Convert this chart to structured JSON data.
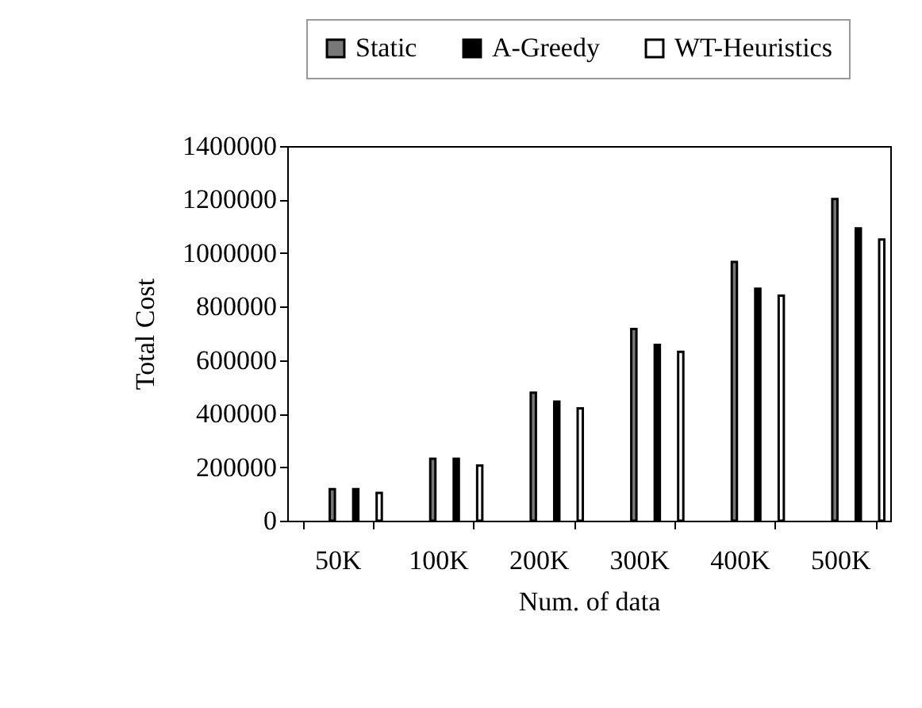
{
  "chart_data": {
    "type": "bar",
    "xlabel": "Num. of data",
    "ylabel": "Total Cost",
    "categories": [
      "50K",
      "100K",
      "200K",
      "300K",
      "400K",
      "500K"
    ],
    "series": [
      {
        "name": "Static",
        "color": "#787878",
        "values": [
          118000,
          231000,
          478000,
          716000,
          967000,
          1202000
        ]
      },
      {
        "name": "A-Greedy",
        "color": "#000000",
        "values": [
          118000,
          231000,
          445000,
          657000,
          867000,
          1092000
        ]
      },
      {
        "name": "WT-Heuristics",
        "color": "#ffffff",
        "values": [
          104000,
          206000,
          420000,
          631000,
          841000,
          1051000
        ]
      }
    ],
    "ylim": [
      0,
      1400000
    ],
    "yticks": [
      0,
      200000,
      400000,
      600000,
      800000,
      1000000,
      1200000,
      1400000
    ],
    "grid": false,
    "legend": "top"
  }
}
